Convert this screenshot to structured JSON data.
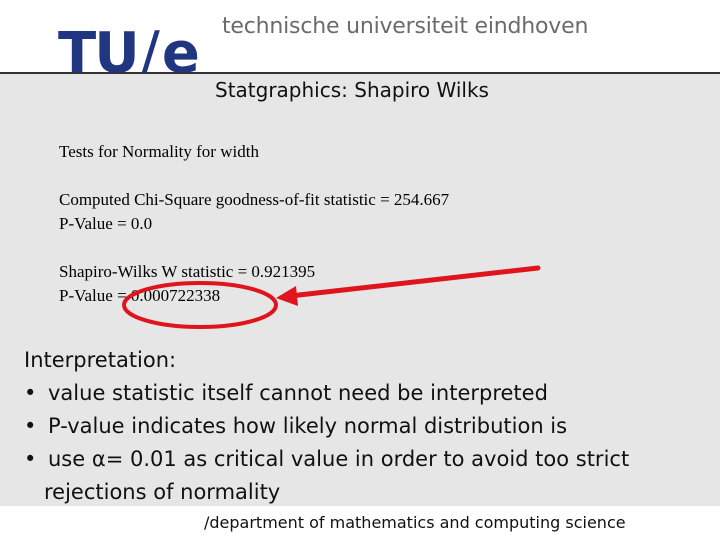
{
  "header": {
    "logo_tu": "TU",
    "logo_slash": "/",
    "logo_e": "e",
    "university": "technische universiteit eindhoven"
  },
  "slide": {
    "title": "Statgraphics: Shapiro Wilks",
    "output": {
      "line1": "Tests for Normality for width",
      "line2": "Computed Chi-Square goodness-of-fit statistic = 254.667",
      "line3": "P-Value = 0.0",
      "line4": "Shapiro-Wilks W statistic = 0.921395",
      "line5": "P-Value = 0.000722338"
    },
    "interpretation": {
      "heading": "Interpretation:",
      "bullet_symbol": "•",
      "bullets": [
        "value statistic itself cannot need be interpreted",
        "P-value indicates how likely normal distribution is",
        "use α= 0.01 as critical value in order to avoid too strict"
      ],
      "continuation": "rejections of normality"
    }
  },
  "footer": {
    "text": "/department of mathematics and computing science"
  },
  "colors": {
    "brand_blue": "#203680",
    "annotation_red": "#e0141c",
    "slide_bg": "#e6e6e6"
  }
}
